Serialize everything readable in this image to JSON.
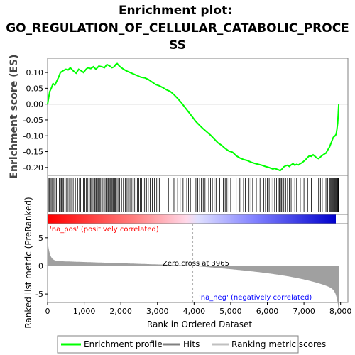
{
  "chart_data": {
    "type": "line",
    "title_lines": [
      "Enrichment plot:",
      "GO_REGULATION_OF_CELLULAR_CATABOLIC_PROCE",
      "SS"
    ],
    "es_panel": {
      "ylabel": "Enrichment score (ES)",
      "ylim": [
        -0.225,
        0.145
      ],
      "yticks": [
        0.1,
        0.05,
        0.0,
        -0.05,
        -0.1,
        -0.15,
        -0.2
      ],
      "ytick_labels": [
        "0.10",
        "0.05",
        "0.00",
        "-0.05",
        "-0.10",
        "-0.15",
        "-0.20"
      ],
      "series": [
        {
          "name": "Enrichment profile",
          "color": "#00ff00",
          "x": [
            0,
            30,
            60,
            100,
            150,
            200,
            260,
            300,
            350,
            420,
            500,
            560,
            620,
            700,
            780,
            850,
            920,
            980,
            1050,
            1100,
            1180,
            1250,
            1320,
            1400,
            1480,
            1550,
            1620,
            1700,
            1760,
            1820,
            1860,
            1900,
            1960,
            2050,
            2150,
            2250,
            2350,
            2450,
            2550,
            2650,
            2750,
            2850,
            2950,
            3050,
            3150,
            3250,
            3350,
            3450,
            3550,
            3650,
            3750,
            3850,
            3950,
            4050,
            4150,
            4250,
            4350,
            4450,
            4550,
            4650,
            4750,
            4850,
            4950,
            5050,
            5150,
            5250,
            5350,
            5450,
            5550,
            5650,
            5750,
            5850,
            5950,
            6050,
            6150,
            6200,
            6300,
            6350,
            6400,
            6450,
            6500,
            6550,
            6600,
            6650,
            6700,
            6750,
            6800,
            6850,
            6900,
            6950,
            7000,
            7050,
            7100,
            7150,
            7200,
            7250,
            7300,
            7350,
            7400,
            7450,
            7500,
            7550,
            7600,
            7650,
            7700,
            7750,
            7800,
            7850,
            7880,
            7900,
            7920,
            7935,
            7950
          ],
          "y": [
            0.0,
            0.02,
            0.04,
            0.05,
            0.065,
            0.06,
            0.075,
            0.085,
            0.1,
            0.105,
            0.11,
            0.108,
            0.115,
            0.105,
            0.098,
            0.11,
            0.105,
            0.1,
            0.11,
            0.115,
            0.112,
            0.118,
            0.11,
            0.12,
            0.118,
            0.115,
            0.125,
            0.12,
            0.115,
            0.118,
            0.125,
            0.128,
            0.12,
            0.112,
            0.105,
            0.1,
            0.095,
            0.09,
            0.085,
            0.083,
            0.078,
            0.07,
            0.062,
            0.058,
            0.052,
            0.045,
            0.04,
            0.03,
            0.018,
            0.005,
            -0.01,
            -0.025,
            -0.04,
            -0.055,
            -0.067,
            -0.078,
            -0.088,
            -0.098,
            -0.11,
            -0.122,
            -0.13,
            -0.14,
            -0.148,
            -0.152,
            -0.163,
            -0.17,
            -0.175,
            -0.178,
            -0.183,
            -0.187,
            -0.19,
            -0.193,
            -0.197,
            -0.2,
            -0.205,
            -0.203,
            -0.207,
            -0.21,
            -0.205,
            -0.198,
            -0.195,
            -0.193,
            -0.197,
            -0.192,
            -0.188,
            -0.193,
            -0.19,
            -0.192,
            -0.188,
            -0.185,
            -0.18,
            -0.175,
            -0.168,
            -0.163,
            -0.165,
            -0.16,
            -0.165,
            -0.17,
            -0.172,
            -0.167,
            -0.162,
            -0.158,
            -0.155,
            -0.145,
            -0.135,
            -0.12,
            -0.105,
            -0.1,
            -0.095,
            -0.08,
            -0.06,
            -0.035,
            0.0
          ]
        }
      ]
    },
    "hits": [
      20,
      45,
      70,
      95,
      120,
      150,
      175,
      210,
      240,
      280,
      320,
      350,
      380,
      410,
      440,
      480,
      520,
      560,
      600,
      640,
      700,
      760,
      820,
      870,
      900,
      940,
      980,
      1020,
      1060,
      1100,
      1140,
      1170,
      1200,
      1240,
      1280,
      1300,
      1330,
      1360,
      1390,
      1420,
      1450,
      1480,
      1510,
      1540,
      1570,
      1600,
      1630,
      1660,
      1690,
      1720,
      1750,
      1780,
      1800,
      1820,
      1840,
      1860,
      1880,
      1920,
      1970,
      2020,
      2070,
      2120,
      2170,
      2210,
      2250,
      2290,
      2330,
      2370,
      2410,
      2450,
      2490,
      2530,
      2570,
      2610,
      2650,
      2700,
      2750,
      2800,
      2860,
      2920,
      2980,
      3050,
      3150,
      3300,
      3450,
      3550,
      3620,
      3700,
      3800,
      3850,
      3900,
      4050,
      4100,
      4150,
      4200,
      4250,
      4300,
      4350,
      4400,
      4450,
      4500,
      4550,
      4600,
      4700,
      4800,
      4850,
      4900,
      4950,
      5000,
      5150,
      5250,
      5350,
      5400,
      5500,
      5550,
      5600,
      5700,
      5800,
      5900,
      5950,
      6000,
      6050,
      6100,
      6150,
      6200,
      6250,
      6300,
      6330,
      6360,
      6390,
      6420,
      6450,
      6500,
      6550,
      6600,
      6650,
      6700,
      6750,
      6800,
      6900,
      7000,
      7100,
      7200,
      7300,
      7400,
      7450,
      7500,
      7550,
      7600,
      7650,
      7700,
      7720,
      7740,
      7760,
      7780,
      7800,
      7820,
      7840,
      7860,
      7880,
      7900,
      7915,
      7930,
      7945
    ],
    "metric_panel": {
      "ylabel": "Ranked list metric (PreRanked)",
      "ylim": [
        -6.5,
        7.5
      ],
      "yticks": [
        5,
        0,
        -5
      ],
      "ytick_labels": [
        "5",
        "0",
        "-5"
      ],
      "zero_cross_label": "Zero cross at 3965",
      "zero_cross": 3965,
      "pos_label": "'na_pos' (positively correlated)",
      "neg_label": "'na_neg' (negatively correlated)"
    },
    "xaxis": {
      "xlabel": "Rank in Ordered Dataset",
      "xlim": [
        0,
        8200
      ],
      "xticks": [
        0,
        1000,
        2000,
        3000,
        4000,
        5000,
        6000,
        7000,
        8000
      ],
      "xtick_labels": [
        "0",
        "1,000",
        "2,000",
        "3,000",
        "4,000",
        "5,000",
        "6,000",
        "7,000",
        "8,000"
      ],
      "n_genes": 7950
    },
    "legend": {
      "placement": "bottom",
      "entries": [
        {
          "label": "Enrichment profile",
          "color": "#00ff00"
        },
        {
          "label": "Hits",
          "color": "#808080"
        },
        {
          "label": "Ranking metric scores",
          "color": "#c0c0c0"
        }
      ]
    },
    "colors": {
      "pos": "#ff0000",
      "neg": "#0000ff",
      "metric_fill": "#a0a0a0",
      "hit": "#000000"
    }
  }
}
